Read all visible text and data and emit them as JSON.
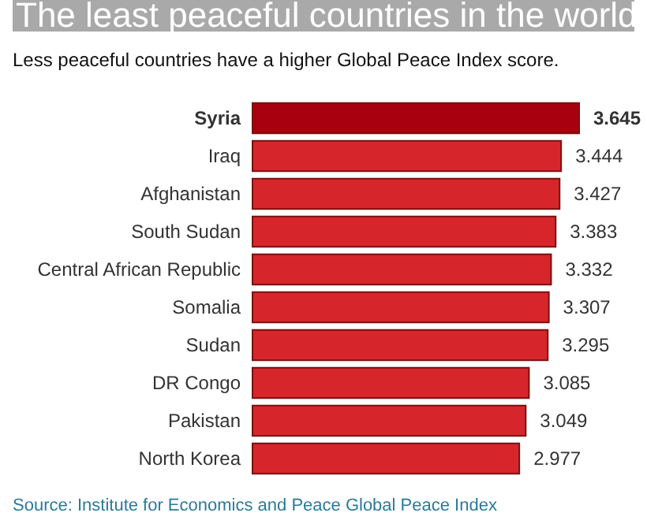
{
  "chart_data": {
    "type": "bar",
    "orientation": "horizontal",
    "title": "The least peaceful countries in the world",
    "subtitle": "Less peaceful countries have a higher Global Peace Index score.",
    "categories": [
      "Syria",
      "Iraq",
      "Afghanistan",
      "South Sudan",
      "Central African Republic",
      "Somalia",
      "Sudan",
      "DR Congo",
      "Pakistan",
      "North Korea"
    ],
    "values": [
      3.645,
      3.444,
      3.427,
      3.383,
      3.332,
      3.307,
      3.295,
      3.085,
      3.049,
      2.977
    ],
    "colors": [
      "#a8000e",
      "#d7262b",
      "#d7262b",
      "#d7262b",
      "#d7262b",
      "#d7262b",
      "#d7262b",
      "#d7262b",
      "#d7262b",
      "#d7262b"
    ],
    "data_labels": true,
    "annotations": [
      "Source: Institute for Economics and Peace Global Peace Index"
    ]
  }
}
